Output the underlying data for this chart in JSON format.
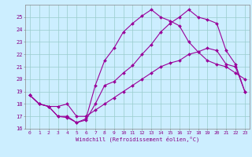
{
  "xlabel": "Windchill (Refroidissement éolien,°C)",
  "bg_color": "#cceeff",
  "line_color": "#990099",
  "grid_color": "#99cccc",
  "xlim": [
    -0.5,
    23.5
  ],
  "ylim": [
    16,
    26
  ],
  "yticks": [
    16,
    17,
    18,
    19,
    20,
    21,
    22,
    23,
    24,
    25
  ],
  "xticks": [
    0,
    1,
    2,
    3,
    4,
    5,
    6,
    7,
    8,
    9,
    10,
    11,
    12,
    13,
    14,
    15,
    16,
    17,
    18,
    19,
    20,
    21,
    22,
    23
  ],
  "line1_x": [
    0,
    1,
    2,
    3,
    4,
    5,
    6,
    7,
    8,
    9,
    10,
    11,
    12,
    13,
    14,
    15,
    16,
    17,
    18,
    19,
    20,
    21,
    22,
    23
  ],
  "line1_y": [
    18.7,
    18.0,
    17.8,
    17.0,
    16.9,
    16.5,
    16.7,
    18.0,
    19.5,
    19.8,
    20.5,
    21.1,
    22.0,
    22.8,
    23.8,
    24.5,
    25.0,
    25.6,
    25.0,
    24.8,
    24.5,
    22.3,
    21.2,
    19.0
  ],
  "line2_x": [
    0,
    1,
    2,
    3,
    4,
    5,
    6,
    7,
    8,
    9,
    10,
    11,
    12,
    13,
    14,
    15,
    16,
    17,
    18,
    19,
    20,
    21,
    22,
    23
  ],
  "line2_y": [
    18.7,
    18.0,
    17.8,
    17.0,
    17.0,
    16.5,
    16.8,
    19.5,
    21.5,
    22.5,
    23.8,
    24.5,
    25.1,
    25.6,
    25.0,
    24.7,
    24.3,
    23.0,
    22.2,
    21.5,
    21.2,
    21.0,
    20.5,
    20.0
  ],
  "line3_x": [
    0,
    1,
    2,
    3,
    4,
    5,
    6,
    7,
    8,
    9,
    10,
    11,
    12,
    13,
    14,
    15,
    16,
    17,
    18,
    19,
    20,
    21,
    22,
    23
  ],
  "line3_y": [
    18.7,
    18.0,
    17.8,
    17.8,
    18.0,
    17.0,
    17.0,
    17.5,
    18.0,
    18.5,
    19.0,
    19.5,
    20.0,
    20.5,
    21.0,
    21.3,
    21.5,
    22.0,
    22.2,
    22.5,
    22.3,
    21.2,
    21.0,
    19.0
  ]
}
